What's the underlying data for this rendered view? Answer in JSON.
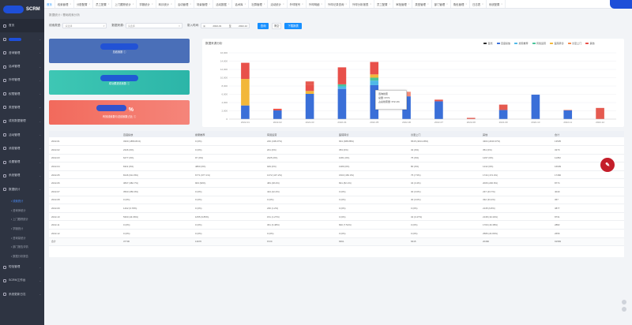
{
  "app": {
    "logo_text": "SCRM"
  },
  "sidebar": {
    "items": [
      {
        "label": "首页",
        "icon": "home-icon"
      },
      {
        "label": "",
        "icon": "user-icon",
        "masked": true
      },
      {
        "label": "咨询管理",
        "icon": "chat-icon"
      },
      {
        "label": "话术管理",
        "icon": "script-icon"
      },
      {
        "label": "外呼管理",
        "icon": "phone-icon"
      },
      {
        "label": "权限管理",
        "icon": "lock-icon"
      },
      {
        "label": "类型管理",
        "icon": "tag-icon"
      },
      {
        "label": "成效数据管理",
        "icon": "data-icon"
      },
      {
        "label": "活动管理",
        "icon": "activity-icon"
      },
      {
        "label": "消息管理",
        "icon": "message-icon"
      },
      {
        "label": "设置管理",
        "icon": "settings-icon"
      },
      {
        "label": "系统管理",
        "icon": "system-icon"
      },
      {
        "label": "数据统计",
        "icon": "stats-icon"
      }
    ],
    "sub_items": [
      "线索统计",
      "咨询师统计",
      "上门跟踪统计",
      "学服统计",
      "咨询量统计",
      "部门报告详情",
      "数据分析报告"
    ],
    "active_sub": "线索统计",
    "bottom_items": [
      {
        "label": "短信管理",
        "icon": "sms-icon"
      },
      {
        "label": "SCRM工作台",
        "icon": "workbench-icon"
      },
      {
        "label": "系统更新日志",
        "icon": "log-icon"
      }
    ]
  },
  "topbar": {
    "tabs": [
      "首页",
      "线索管理",
      "分配配置",
      "员工配置",
      "上门跟踪统计",
      "学服统计",
      "转诊统计",
      "活动管理",
      "场景管理",
      "活动数据",
      "话术库",
      "社群管理",
      "活动统计",
      "外呼账号",
      "外呼明细",
      "外呼记录查询",
      "外呼分析报表",
      "员工配置",
      "审批管理",
      "类型管理",
      "部门管理",
      "角色管理",
      "日志表",
      "系统配置"
    ],
    "active_index": 0
  },
  "breadcrumb": "数据统计 / 基础线索分析",
  "filters": {
    "clue_type_label": "线索类型:",
    "clue_type_placeholder": "请选择",
    "source_label": "数据来源:",
    "source_placeholder": "请选择",
    "date_label": "录入时间:",
    "date_start": "2022-01",
    "date_sep": "至",
    "date_end": "2022-12",
    "search_button": "查询",
    "reset_button": "清空",
    "export_button": "下载报表"
  },
  "cards": [
    {
      "value": "",
      "label": "总线索数",
      "color": "#4a6fb8"
    },
    {
      "value": "",
      "label": "成功跟进线索数",
      "color": "#3ec7b4"
    },
    {
      "value": "%",
      "label": "有效线索数与总线索数占比",
      "color": "#f26a5c"
    }
  ],
  "chart_data": {
    "type": "bar",
    "title": "数据来源分析",
    "stacked": true,
    "categories": [
      "2022-01",
      "2022-02",
      "2022-03",
      "2022-04",
      "2022-05",
      "2022-06",
      "2022-07",
      "2022-08",
      "2022-09",
      "2022-10",
      "2022-11",
      "2022-12"
    ],
    "ylim": [
      0,
      16000
    ],
    "yticks": [
      0,
      2000,
      4000,
      6000,
      8000,
      10000,
      12000,
      14000,
      16000
    ],
    "grid": true,
    "legend_position": "top-right",
    "series": [
      {
        "name": "自然",
        "color": "#2c2c2c",
        "values": [
          0,
          0,
          0,
          0,
          0,
          0,
          0,
          0,
          0,
          0,
          0,
          0
        ]
      },
      {
        "name": "百度投放",
        "color": "#3a6fd8",
        "values": [
          3300,
          2100,
          6100,
          7300,
          8200,
          5500,
          4300,
          0,
          2200,
          5900,
          2100,
          0
        ]
      },
      {
        "name": "搜索推荐",
        "color": "#4fb9e8",
        "values": [
          0,
          0,
          0,
          600,
          1100,
          0,
          0,
          0,
          0,
          0,
          0,
          0
        ]
      },
      {
        "name": "有赞运营",
        "color": "#49c49a",
        "values": [
          0,
          0,
          0,
          500,
          700,
          0,
          0,
          0,
          0,
          0,
          0,
          0
        ]
      },
      {
        "name": "医院转诊",
        "color": "#f2b73a",
        "values": [
          6400,
          0,
          700,
          0,
          800,
          0,
          0,
          0,
          0,
          0,
          0,
          0
        ]
      },
      {
        "name": "诊室上门",
        "color": "#f58a4b",
        "values": [
          0,
          0,
          0,
          0,
          0,
          0,
          0,
          0,
          0,
          0,
          0,
          0
        ]
      },
      {
        "name": "其他",
        "color": "#e8504a",
        "values": [
          3900,
          400,
          1400,
          4100,
          3000,
          0,
          0,
          0,
          0,
          0,
          0,
          0
        ]
      },
      {
        "name": "",
        "color": "#f28c7a",
        "values": [
          0,
          0,
          0,
          0,
          0,
          1100,
          0,
          0,
          0,
          0,
          0,
          0
        ]
      },
      {
        "name": "",
        "color": "#e55a50",
        "values": [
          0,
          0,
          900,
          0,
          0,
          0,
          400,
          300,
          1300,
          0,
          100,
          2700
        ]
      }
    ]
  },
  "tooltip": {
    "title": "咨询线索",
    "line1": "总量: 6771",
    "line2": "占总线索量: 672.1%"
  },
  "table": {
    "headers": [
      "",
      "百度投放",
      "搜索推荐",
      "有赞运营",
      "医院转诊",
      "诊室上门",
      "其他",
      "合计"
    ],
    "rows": [
      [
        "2022-01",
        "3300 (1856.81%)",
        "0 (0%)",
        "226 (138.07%)",
        "664 (388.88%)",
        "6515 (3434.28%)",
        "4304 (2430.37%)",
        "13535"
      ],
      [
        "2022-02",
        "2346 (0%)",
        "0 (0%)",
        "201 (0%)",
        "353 (0%)",
        "32 (0%)",
        "354 (0%)",
        "3270"
      ],
      [
        "2022-03",
        "6477 (0%)",
        "97 (0%)",
        "2325 (0%)",
        "1081 (0%)",
        "75 (0%)",
        "1297 (0%)",
        "11352"
      ],
      [
        "2022-04",
        "8119 (0%)",
        "4860 (0%)",
        "949 (0%)",
        "1389 (0%)",
        "80 (0%)",
        "1242 (0%)",
        "16639"
      ],
      [
        "2022-05",
        "8146 (614.8%)",
        "6771 (677.1%)",
        "1372 (137.2%)",
        "1503 (150.3%)",
        "75 (7.5%)",
        "1744 (174.4%)",
        "17466"
      ],
      [
        "2022-06",
        "3837 (382.7%)",
        "903 (90%)",
        "484 (48.4%)",
        "821 (82.1%)",
        "34 (3.4%)",
        "2006 (200.6%)",
        "8774"
      ],
      [
        "2022-07",
        "3503 (356.9%)",
        "0 (0%)",
        "424 (42.4%)",
        "0 (0%)",
        "30 (3.0%)",
        "237 (23.7%)",
        "4040"
      ],
      [
        "2022-08",
        "0 (0%)",
        "0 (0%)",
        "0 (0%)",
        "0 (0%)",
        "30 (3.0%)",
        "332 (33.2%)",
        "367"
      ],
      [
        "2022-09",
        "1402 (9.78%)",
        "0 (0%)",
        "236 (1.2%)",
        "0 (0%)",
        "0 (0%)",
        "2135 (9.8%)",
        "3877"
      ],
      [
        "2022-10",
        "5360 (44.66%)",
        "1055 (9.85%)",
        "151 (1.27%)",
        "0 (0%)",
        "32 (0.47%)",
        "2138 (19.44%)",
        "8731"
      ],
      [
        "2022-11",
        "0 (0%)",
        "0 (0%)",
        "361 (3.48%)",
        "820 (7.51%)",
        "0 (0%)",
        "1700 (16.38%)",
        "2882"
      ],
      [
        "2022-12",
        "0 (0%)",
        "0 (0%)",
        "0 (0%)",
        "0 (0%)",
        "0 (0%)",
        "2586 (24.83%)",
        "2656"
      ]
    ],
    "total": [
      "合计",
      "37730",
      "13670",
      "6720",
      "6661",
      "6615",
      "20482",
      "91583"
    ]
  }
}
